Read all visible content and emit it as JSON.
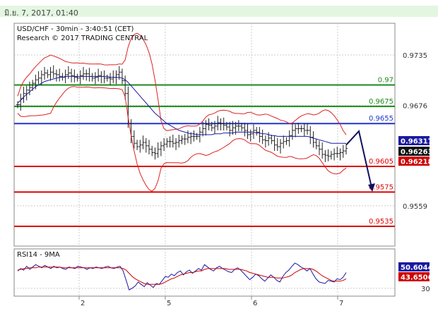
{
  "header": {
    "date_time": "มิ.ย. 7, 2017, 01:40"
  },
  "chart_data": [
    {
      "type": "line",
      "title": "USD/CHF - 30min - 3:40:51 (CET)",
      "subtitle": "Research © 2017 TRADING CENTRAL",
      "x_ticks": [
        "2",
        "5",
        "6",
        "7"
      ],
      "y_ticks": [
        0.9735,
        0.9676,
        0.9559
      ],
      "ylim": [
        0.9512,
        0.9772
      ],
      "levels": [
        {
          "label": "0.97",
          "value": 0.97,
          "color": "#1a8a1a"
        },
        {
          "label": "0.9675",
          "value": 0.9675,
          "color": "#1a8a1a"
        },
        {
          "label": "0.9655",
          "value": 0.9655,
          "color": "#2233cc"
        },
        {
          "label": "0.9605",
          "value": 0.9605,
          "color": "#dd0000"
        },
        {
          "label": "0.9575",
          "value": 0.9575,
          "color": "#dd0000"
        },
        {
          "label": "0.9535",
          "value": 0.9535,
          "color": "#dd0000"
        }
      ],
      "price_tags": [
        {
          "label": "0.96317",
          "value": 0.96317,
          "color": "#1a1aa0"
        },
        {
          "label": "0.96263",
          "value": 0.96263,
          "color": "#111111"
        },
        {
          "label": "0.96218",
          "value": 0.96218,
          "color": "#cc0000"
        }
      ],
      "series": [
        {
          "values": [
            0.9677,
            0.9684,
            0.969,
            0.9694,
            0.9697,
            0.9702,
            0.9706,
            0.9708,
            0.9712,
            0.9714,
            0.9712,
            0.9715,
            0.9713,
            0.9712,
            0.971,
            0.9709,
            0.9712,
            0.9714,
            0.9711,
            0.9709,
            0.9708,
            0.9711,
            0.9713,
            0.9713,
            0.971,
            0.9708,
            0.9709,
            0.9711,
            0.971,
            0.9708,
            0.9708,
            0.9707,
            0.9709,
            0.9712,
            0.9715,
            0.9705,
            0.969,
            0.9655,
            0.964,
            0.9632,
            0.9628,
            0.963,
            0.9633,
            0.9629,
            0.9625,
            0.9621,
            0.962,
            0.9625,
            0.9629,
            0.9631,
            0.9634,
            0.9634,
            0.9632,
            0.9633,
            0.9635,
            0.9637,
            0.9637,
            0.9639,
            0.964,
            0.964,
            0.964,
            0.9645,
            0.9649,
            0.9654,
            0.9653,
            0.965,
            0.9652,
            0.9656,
            0.9655,
            0.9653,
            0.9651,
            0.9647,
            0.965,
            0.9652,
            0.9652,
            0.965,
            0.9647,
            0.9642,
            0.9643,
            0.9647,
            0.9645,
            0.964,
            0.9636,
            0.9635,
            0.9638,
            0.9635,
            0.963,
            0.9628,
            0.9632,
            0.9634,
            0.9635,
            0.9641,
            0.9647,
            0.9649,
            0.9649,
            0.9649,
            0.9647,
            0.9647,
            0.9639,
            0.9633,
            0.9629,
            0.9625,
            0.9619,
            0.9618,
            0.9617,
            0.9619,
            0.962,
            0.962,
            0.9621,
            0.9623,
            0.9626
          ]
        },
        {
          "values": [
            0.9679,
            0.9682,
            0.9686,
            0.9689,
            0.9692,
            0.9695,
            0.9698,
            0.97,
            0.9702,
            0.9704,
            0.9705,
            0.9706,
            0.9707,
            0.9708,
            0.9709,
            0.9709,
            0.971,
            0.971,
            0.971,
            0.971,
            0.971,
            0.971,
            0.971,
            0.971,
            0.971,
            0.971,
            0.971,
            0.971,
            0.971,
            0.971,
            0.971,
            0.9709,
            0.9709,
            0.9709,
            0.9709,
            0.9708,
            0.9706,
            0.9703,
            0.9699,
            0.9695,
            0.9691,
            0.9687,
            0.9683,
            0.9679,
            0.9675,
            0.9671,
            0.9667,
            0.9664,
            0.9661,
            0.9658,
            0.9655,
            0.9653,
            0.9651,
            0.9649,
            0.9647,
            0.9646,
            0.9645,
            0.9644,
            0.9643,
            0.9643,
            0.9642,
            0.9642,
            0.9642,
            0.9642,
            0.9642,
            0.9642,
            0.9643,
            0.9643,
            0.9643,
            0.9644,
            0.9644,
            0.9644,
            0.9644,
            0.9645,
            0.9645,
            0.9645,
            0.9645,
            0.9645,
            0.9645,
            0.9645,
            0.9644,
            0.9644,
            0.9643,
            0.9643,
            0.9642,
            0.9641,
            0.9641,
            0.964,
            0.964,
            0.964,
            0.964,
            0.964,
            0.964,
            0.964,
            0.964,
            0.964,
            0.964,
            0.964,
            0.9639,
            0.9638,
            0.9637,
            0.9636,
            0.9635,
            0.9634,
            0.9633,
            0.9632,
            0.9632,
            0.9632,
            0.9632,
            0.9632,
            0.9632
          ]
        }
      ],
      "forecast_path": [
        0.963,
        0.9646,
        0.9577
      ]
    },
    {
      "type": "line",
      "title": "RSI14 - 9MA",
      "y_ticks": [
        30
      ],
      "ylim": [
        20,
        80
      ],
      "price_tags": [
        {
          "label": "50.6044",
          "value": 50.6,
          "color": "#1a1aa0"
        },
        {
          "label": "43.6506",
          "value": 43.65,
          "color": "#cc0000"
        }
      ],
      "series": [
        {
          "values": [
            52,
            55,
            53,
            58,
            54,
            57,
            60,
            58,
            56,
            59,
            57,
            55,
            58,
            56,
            57,
            55,
            54,
            57,
            56,
            55,
            58,
            57,
            56,
            54,
            56,
            55,
            57,
            56,
            55,
            57,
            58,
            56,
            55,
            57,
            58,
            52,
            40,
            28,
            30,
            33,
            38,
            35,
            32,
            37,
            34,
            31,
            36,
            35,
            40,
            45,
            44,
            48,
            46,
            50,
            52,
            47,
            51,
            53,
            49,
            52,
            55,
            53,
            60,
            57,
            54,
            52,
            56,
            58,
            55,
            53,
            51,
            50,
            54,
            56,
            53,
            49,
            45,
            41,
            44,
            48,
            46,
            42,
            39,
            43,
            47,
            44,
            40,
            38,
            45,
            50,
            53,
            58,
            62,
            60,
            57,
            55,
            52,
            55,
            48,
            42,
            38,
            37,
            36,
            40,
            39,
            38,
            42,
            41,
            44,
            50
          ]
        },
        {
          "values": [
            53,
            54,
            55,
            55,
            56,
            56,
            56,
            57,
            57,
            57,
            57,
            57,
            57,
            57,
            57,
            56,
            56,
            56,
            56,
            56,
            56,
            56,
            56,
            56,
            56,
            56,
            56,
            56,
            56,
            56,
            56,
            56,
            56,
            56,
            56,
            55,
            53,
            49,
            45,
            42,
            40,
            38,
            36,
            35,
            35,
            35,
            35,
            35,
            36,
            38,
            40,
            42,
            43,
            45,
            47,
            48,
            49,
            50,
            50,
            51,
            52,
            52,
            54,
            55,
            55,
            55,
            55,
            55,
            55,
            55,
            54,
            54,
            54,
            54,
            54,
            53,
            52,
            50,
            49,
            48,
            47,
            46,
            45,
            44,
            44,
            44,
            43,
            43,
            43,
            44,
            45,
            47,
            50,
            52,
            54,
            55,
            55,
            55,
            54,
            52,
            49,
            46,
            44,
            42,
            40,
            39,
            39,
            39,
            40,
            42
          ]
        }
      ]
    }
  ]
}
